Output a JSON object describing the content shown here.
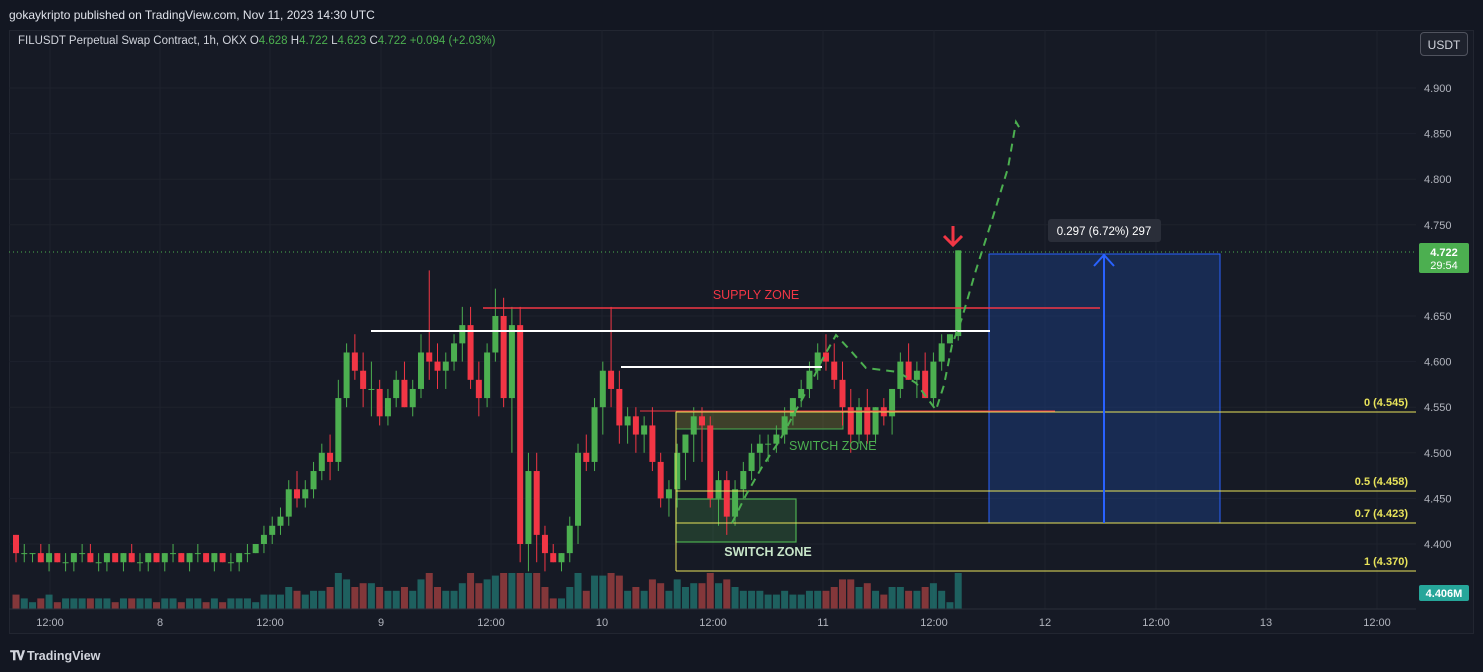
{
  "header": {
    "published": "gokaykripto published on TradingView.com, Nov 11, 2023 14:30 UTC"
  },
  "legend": {
    "symbol": "FILUSDT Perpetual Swap Contract, 1h, OKX",
    "o_label": "O",
    "o_value": "4.628",
    "h_label": "H",
    "h_value": "4.722",
    "l_label": "L",
    "l_value": "4.623",
    "c_label": "C",
    "c_value": "4.722",
    "change": "+0.094 (+2.03%)"
  },
  "currency_button": "USDT",
  "price_axis": {
    "ticks": [
      "4.900",
      "4.850",
      "4.800",
      "4.750",
      "4.650",
      "4.600",
      "4.550",
      "4.500",
      "4.450",
      "4.400"
    ],
    "current_price": "4.722",
    "countdown": "29:54",
    "volume_label": "4.406M"
  },
  "time_axis": {
    "ticks": [
      "12:00",
      "8",
      "12:00",
      "9",
      "12:00",
      "10",
      "12:00",
      "11",
      "12:00",
      "12",
      "12:00",
      "13",
      "12:00"
    ]
  },
  "annotations": {
    "supply_zone": "SUPPLY ZONE",
    "switch_zone_upper": "SWITCH ZONE",
    "switch_zone_lower": "SWITCH ZONE",
    "measure": "0.297 (6.72%) 297",
    "fib_0": "0 (4.545)",
    "fib_05": "0.5 (4.458)",
    "fib_07": "0.7 (4.423)",
    "fib_1": "1 (4.370)"
  },
  "colors": {
    "up": "#4caf50",
    "down": "#f23645",
    "fib": "#e8e35a",
    "measure": "#2962ff"
  },
  "footer": {
    "brand": "TradingView"
  },
  "chart_data": {
    "type": "candlestick",
    "interval": "1h",
    "x_start": "2023-11-07 12:00",
    "ylim": [
      4.37,
      4.92
    ],
    "candles": [
      [
        4.41,
        4.41,
        4.38,
        4.39
      ],
      [
        4.39,
        4.4,
        4.38,
        4.39
      ],
      [
        4.39,
        4.39,
        4.38,
        4.39
      ],
      [
        4.39,
        4.4,
        4.38,
        4.38
      ],
      [
        4.38,
        4.4,
        4.37,
        4.39
      ],
      [
        4.39,
        4.39,
        4.38,
        4.38
      ],
      [
        4.38,
        4.39,
        4.37,
        4.38
      ],
      [
        4.38,
        4.39,
        4.37,
        4.39
      ],
      [
        4.39,
        4.4,
        4.38,
        4.39
      ],
      [
        4.39,
        4.4,
        4.38,
        4.38
      ],
      [
        4.38,
        4.39,
        4.37,
        4.38
      ],
      [
        4.38,
        4.39,
        4.37,
        4.39
      ],
      [
        4.39,
        4.39,
        4.38,
        4.38
      ],
      [
        4.38,
        4.39,
        4.37,
        4.39
      ],
      [
        4.39,
        4.4,
        4.38,
        4.38
      ],
      [
        4.38,
        4.39,
        4.37,
        4.38
      ],
      [
        4.38,
        4.39,
        4.37,
        4.39
      ],
      [
        4.39,
        4.39,
        4.38,
        4.38
      ],
      [
        4.38,
        4.39,
        4.37,
        4.39
      ],
      [
        4.39,
        4.4,
        4.38,
        4.39
      ],
      [
        4.39,
        4.39,
        4.38,
        4.38
      ],
      [
        4.38,
        4.39,
        4.37,
        4.39
      ],
      [
        4.39,
        4.4,
        4.38,
        4.39
      ],
      [
        4.39,
        4.39,
        4.38,
        4.38
      ],
      [
        4.38,
        4.39,
        4.37,
        4.39
      ],
      [
        4.39,
        4.39,
        4.38,
        4.38
      ],
      [
        4.38,
        4.39,
        4.37,
        4.38
      ],
      [
        4.38,
        4.39,
        4.37,
        4.39
      ],
      [
        4.39,
        4.4,
        4.38,
        4.39
      ],
      [
        4.39,
        4.4,
        4.39,
        4.4
      ],
      [
        4.4,
        4.42,
        4.39,
        4.41
      ],
      [
        4.41,
        4.43,
        4.4,
        4.42
      ],
      [
        4.42,
        4.44,
        4.41,
        4.43
      ],
      [
        4.43,
        4.47,
        4.42,
        4.46
      ],
      [
        4.46,
        4.48,
        4.44,
        4.45
      ],
      [
        4.45,
        4.47,
        4.44,
        4.46
      ],
      [
        4.46,
        4.49,
        4.45,
        4.48
      ],
      [
        4.48,
        4.51,
        4.47,
        4.5
      ],
      [
        4.5,
        4.52,
        4.47,
        4.49
      ],
      [
        4.49,
        4.58,
        4.48,
        4.56
      ],
      [
        4.56,
        4.62,
        4.55,
        4.61
      ],
      [
        4.61,
        4.63,
        4.58,
        4.59
      ],
      [
        4.59,
        4.61,
        4.55,
        4.57
      ],
      [
        4.57,
        4.6,
        4.54,
        4.57
      ],
      [
        4.57,
        4.58,
        4.53,
        4.54
      ],
      [
        4.54,
        4.57,
        4.53,
        4.56
      ],
      [
        4.56,
        4.59,
        4.55,
        4.58
      ],
      [
        4.58,
        4.6,
        4.55,
        4.55
      ],
      [
        4.55,
        4.58,
        4.54,
        4.57
      ],
      [
        4.57,
        4.63,
        4.56,
        4.61
      ],
      [
        4.61,
        4.7,
        4.58,
        4.6
      ],
      [
        4.6,
        4.62,
        4.57,
        4.59
      ],
      [
        4.59,
        4.61,
        4.57,
        4.6
      ],
      [
        4.6,
        4.63,
        4.59,
        4.62
      ],
      [
        4.62,
        4.66,
        4.6,
        4.64
      ],
      [
        4.64,
        4.66,
        4.57,
        4.58
      ],
      [
        4.58,
        4.6,
        4.54,
        4.56
      ],
      [
        4.56,
        4.62,
        4.55,
        4.61
      ],
      [
        4.61,
        4.68,
        4.6,
        4.65
      ],
      [
        4.65,
        4.67,
        4.55,
        4.56
      ],
      [
        4.56,
        4.66,
        4.5,
        4.64
      ],
      [
        4.64,
        4.66,
        4.38,
        4.4
      ],
      [
        4.4,
        4.5,
        4.37,
        4.48
      ],
      [
        4.48,
        4.5,
        4.38,
        4.41
      ],
      [
        4.41,
        4.42,
        4.37,
        4.39
      ],
      [
        4.39,
        4.4,
        4.38,
        4.38
      ],
      [
        4.38,
        4.39,
        4.37,
        4.39
      ],
      [
        4.39,
        4.43,
        4.38,
        4.42
      ],
      [
        4.42,
        4.51,
        4.4,
        4.5
      ],
      [
        4.5,
        4.52,
        4.48,
        4.49
      ],
      [
        4.49,
        4.56,
        4.48,
        4.55
      ],
      [
        4.55,
        4.6,
        4.52,
        4.59
      ],
      [
        4.59,
        4.66,
        4.55,
        4.57
      ],
      [
        4.57,
        4.59,
        4.51,
        4.53
      ],
      [
        4.53,
        4.55,
        4.51,
        4.54
      ],
      [
        4.54,
        4.55,
        4.5,
        4.52
      ],
      [
        4.52,
        4.54,
        4.5,
        4.53
      ],
      [
        4.53,
        4.55,
        4.48,
        4.49
      ],
      [
        4.49,
        4.5,
        4.44,
        4.45
      ],
      [
        4.45,
        4.47,
        4.43,
        4.46
      ],
      [
        4.46,
        4.51,
        4.44,
        4.5
      ],
      [
        4.5,
        4.52,
        4.47,
        4.52
      ],
      [
        4.52,
        4.55,
        4.49,
        4.54
      ],
      [
        4.54,
        4.55,
        4.49,
        4.53
      ],
      [
        4.53,
        4.54,
        4.44,
        4.45
      ],
      [
        4.45,
        4.48,
        4.42,
        4.47
      ],
      [
        4.47,
        4.48,
        4.41,
        4.43
      ],
      [
        4.43,
        4.47,
        4.42,
        4.46
      ],
      [
        4.46,
        4.49,
        4.45,
        4.48
      ],
      [
        4.48,
        4.51,
        4.47,
        4.5
      ],
      [
        4.5,
        4.52,
        4.48,
        4.51
      ],
      [
        4.51,
        4.52,
        4.49,
        4.51
      ],
      [
        4.51,
        4.53,
        4.5,
        4.52
      ],
      [
        4.52,
        4.55,
        4.51,
        4.54
      ],
      [
        4.54,
        4.56,
        4.53,
        4.56
      ],
      [
        4.56,
        4.58,
        4.55,
        4.57
      ],
      [
        4.57,
        4.6,
        4.56,
        4.59
      ],
      [
        4.59,
        4.62,
        4.58,
        4.61
      ],
      [
        4.61,
        4.63,
        4.59,
        4.6
      ],
      [
        4.6,
        4.62,
        4.57,
        4.58
      ],
      [
        4.58,
        4.6,
        4.53,
        4.55
      ],
      [
        4.55,
        4.57,
        4.5,
        4.52
      ],
      [
        4.52,
        4.56,
        4.51,
        4.55
      ],
      [
        4.55,
        4.57,
        4.51,
        4.52
      ],
      [
        4.52,
        4.55,
        4.51,
        4.55
      ],
      [
        4.55,
        4.56,
        4.53,
        4.54
      ],
      [
        4.54,
        4.57,
        4.52,
        4.57
      ],
      [
        4.57,
        4.61,
        4.56,
        4.6
      ],
      [
        4.6,
        4.62,
        4.58,
        4.58
      ],
      [
        4.58,
        4.6,
        4.56,
        4.59
      ],
      [
        4.59,
        4.61,
        4.56,
        4.56
      ],
      [
        4.56,
        4.61,
        4.55,
        4.6
      ],
      [
        4.6,
        4.63,
        4.59,
        4.62
      ],
      [
        4.62,
        4.63,
        4.62,
        4.63
      ],
      [
        4.628,
        4.722,
        4.623,
        4.722
      ]
    ],
    "volume_max_m": 4.406
  }
}
